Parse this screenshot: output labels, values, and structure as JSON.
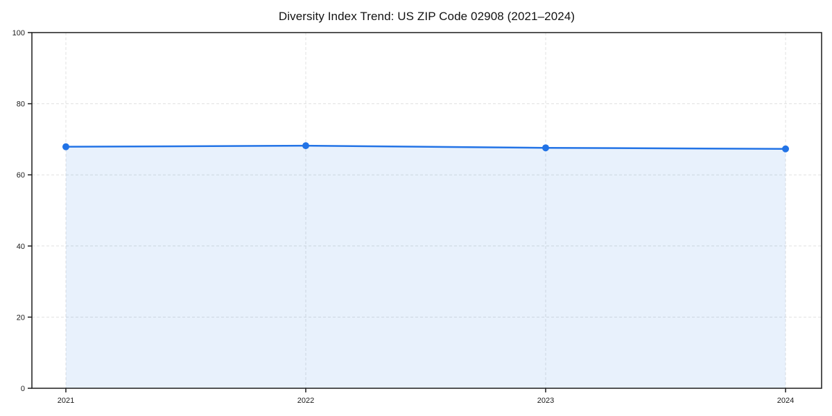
{
  "chart_data": {
    "type": "area",
    "title": "Diversity Index Trend: US ZIP Code 02908 (2021–2024)",
    "x": [
      "2021",
      "2022",
      "2023",
      "2024"
    ],
    "series": [
      {
        "name": "Diversity Index",
        "values": [
          67.9,
          68.2,
          67.6,
          67.3
        ]
      }
    ],
    "xlabel": "",
    "ylabel": "",
    "ylim": [
      0,
      100
    ],
    "yticks": [
      0,
      20,
      40,
      60,
      80,
      100
    ],
    "grid": true,
    "grid_style": "dashed",
    "legend": false,
    "colors": {
      "line": "#2273e6",
      "marker": "#2273e6",
      "fill": "rgba(34, 115, 230, 0.10)",
      "grid": "#e0e0e0",
      "axis": "#1a1a1a",
      "tick_text": "#1a1a1a",
      "background": "#ffffff"
    }
  }
}
